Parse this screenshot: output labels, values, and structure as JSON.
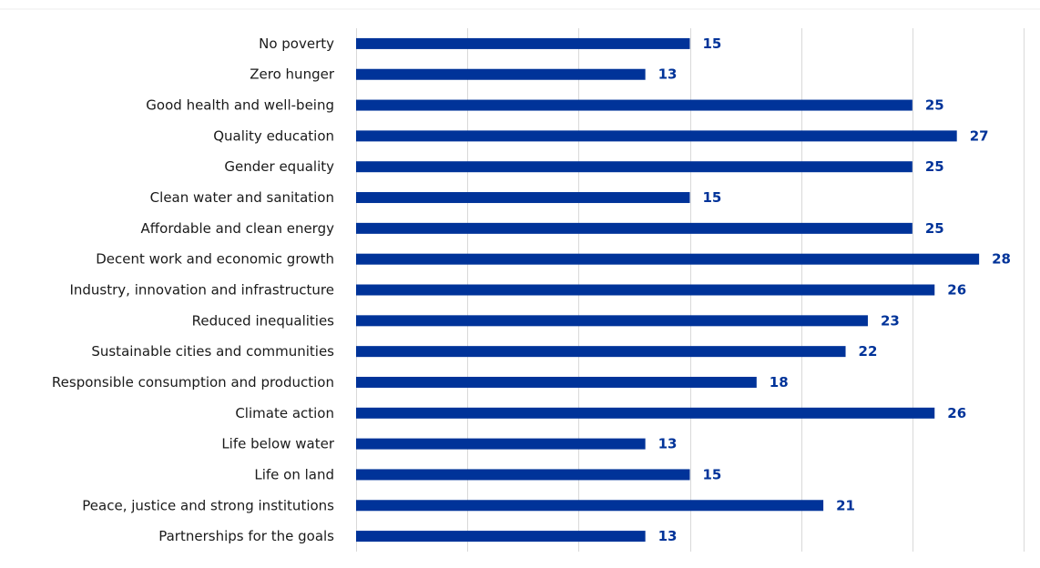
{
  "chart_data": {
    "type": "bar",
    "orientation": "horizontal",
    "title": "",
    "xlabel": "",
    "ylabel": "",
    "categories": [
      "No poverty",
      "Zero hunger",
      "Good health and well-being",
      "Quality education",
      "Gender equality",
      "Clean water and sanitation",
      "Affordable and clean energy",
      "Decent work and economic growth",
      "Industry, innovation and infrastructure",
      "Reduced inequalities",
      "Sustainable cities and communities",
      "Responsible consumption and production",
      "Climate action",
      "Life below water",
      "Life on land",
      "Peace, justice and strong institutions",
      "Partnerships for the goals"
    ],
    "values": [
      15,
      13,
      25,
      27,
      25,
      15,
      25,
      28,
      26,
      23,
      22,
      18,
      26,
      13,
      15,
      21,
      13
    ],
    "xlim": [
      0,
      30
    ],
    "x_gridline_step": 5,
    "x_tick_labels_shown": false,
    "grid": "vertical",
    "legend": "none",
    "data_labels": true,
    "colors": {
      "bar": "#003399",
      "data_label": "#003399",
      "gridline": "#d9d9d9"
    }
  }
}
